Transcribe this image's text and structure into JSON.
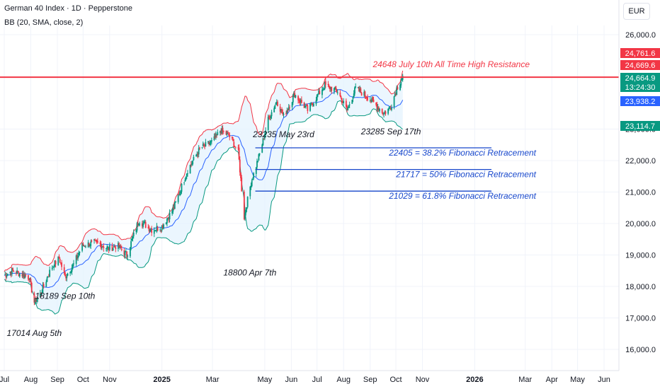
{
  "header": {
    "title": "German 40 Index · 1D · Pepperstone",
    "indicator": "BB (20, SMA, close, 2)",
    "currency": "EUR"
  },
  "colors": {
    "candle_up": "#089981",
    "candle_down": "#f23645",
    "bb_upper": "#f23645",
    "bb_lower": "#089981",
    "bb_basis": "#2962ff",
    "bb_fill": "#e3f2fd",
    "resistance": "#f23645",
    "fib": "#1848cc"
  },
  "chart_data": {
    "type": "candlestick",
    "title": "German 40 Index · 1D · Pepperstone",
    "indicator": "BB (20, SMA, close, 2)",
    "y_axis_ticks": [
      "26,000.0",
      "23,000.0",
      "22,000.0",
      "21,000.0",
      "20,000.0",
      "19,000.0",
      "18,000.0",
      "17,000.0",
      "16,000.0"
    ],
    "y_range": [
      15600,
      26400
    ],
    "x_axis_labels": [
      "Jul",
      "Aug",
      "Sep",
      "Oct",
      "Nov",
      "2025",
      "Mar",
      "May",
      "Jun",
      "Jul",
      "Aug",
      "Sep",
      "Oct",
      "Nov",
      "2026",
      "Mar",
      "Apr",
      "May",
      "Jun"
    ],
    "x_range": [
      "2024-07-01",
      "2026-06-15"
    ],
    "price_tags": [
      {
        "value": "24,761.6",
        "color": "#f23645"
      },
      {
        "value": "24,669.6",
        "color": "#f23645"
      },
      {
        "value": "24,664.9",
        "color": "#089981"
      },
      {
        "value": "13:24:30",
        "color": "#089981"
      },
      {
        "value": "23,938.2",
        "color": "#2962ff"
      },
      {
        "value": "23,114.7",
        "color": "#089981"
      }
    ],
    "levels": [
      {
        "kind": "resistance",
        "price": 24648,
        "label": "24648 July 10th All Time High Resistance"
      },
      {
        "kind": "fib",
        "price": 22405,
        "label": "22405 = 38.2% Fibonacci Retracement"
      },
      {
        "kind": "fib",
        "price": 21717,
        "label": "21717 = 50% Fibonacci Retracement"
      },
      {
        "kind": "fib",
        "price": 21029,
        "label": "21029 = 61.8% Fibonacci Retracement"
      }
    ],
    "annotations": [
      {
        "label": "17014 Aug 5th",
        "date": "2024-08-05",
        "price": 17014
      },
      {
        "label": "18189 Sep 10th",
        "date": "2024-09-10",
        "price": 18189
      },
      {
        "label": "18800 Apr 7th",
        "date": "2025-04-07",
        "price": 18800
      },
      {
        "label": "23235 May 23rd",
        "date": "2025-05-23",
        "price": 23235
      },
      {
        "label": "23285 Sep 17th",
        "date": "2025-09-17",
        "price": 23285
      }
    ],
    "price_path": [
      [
        "2024-07-01",
        18350
      ],
      [
        "2024-07-10",
        18500
      ],
      [
        "2024-07-20",
        18400
      ],
      [
        "2024-07-30",
        18300
      ],
      [
        "2024-08-05",
        17500
      ],
      [
        "2024-08-12",
        17750
      ],
      [
        "2024-08-25",
        18600
      ],
      [
        "2024-09-03",
        18900
      ],
      [
        "2024-09-10",
        18300
      ],
      [
        "2024-09-20",
        18700
      ],
      [
        "2024-09-30",
        19300
      ],
      [
        "2024-10-15",
        19400
      ],
      [
        "2024-10-31",
        19200
      ],
      [
        "2024-11-10",
        19300
      ],
      [
        "2024-11-21",
        19000
      ],
      [
        "2024-12-05",
        20100
      ],
      [
        "2024-12-20",
        19800
      ],
      [
        "2025-01-01",
        19900
      ],
      [
        "2025-01-15",
        20500
      ],
      [
        "2025-01-31",
        21700
      ],
      [
        "2025-02-15",
        22400
      ],
      [
        "2025-03-01",
        22600
      ],
      [
        "2025-03-10",
        22950
      ],
      [
        "2025-03-20",
        22800
      ],
      [
        "2025-03-31",
        22300
      ],
      [
        "2025-04-07",
        20200
      ],
      [
        "2025-04-15",
        21300
      ],
      [
        "2025-04-25",
        22200
      ],
      [
        "2025-05-05",
        23300
      ],
      [
        "2025-05-15",
        23900
      ],
      [
        "2025-05-23",
        23400
      ],
      [
        "2025-06-05",
        24100
      ],
      [
        "2025-06-20",
        23600
      ],
      [
        "2025-07-10",
        24400
      ],
      [
        "2025-07-25",
        24200
      ],
      [
        "2025-08-05",
        23600
      ],
      [
        "2025-08-15",
        24300
      ],
      [
        "2025-08-30",
        24000
      ],
      [
        "2025-09-10",
        23700
      ],
      [
        "2025-09-17",
        23500
      ],
      [
        "2025-09-25",
        23700
      ],
      [
        "2025-10-02",
        24300
      ],
      [
        "2025-10-09",
        24650
      ]
    ]
  }
}
